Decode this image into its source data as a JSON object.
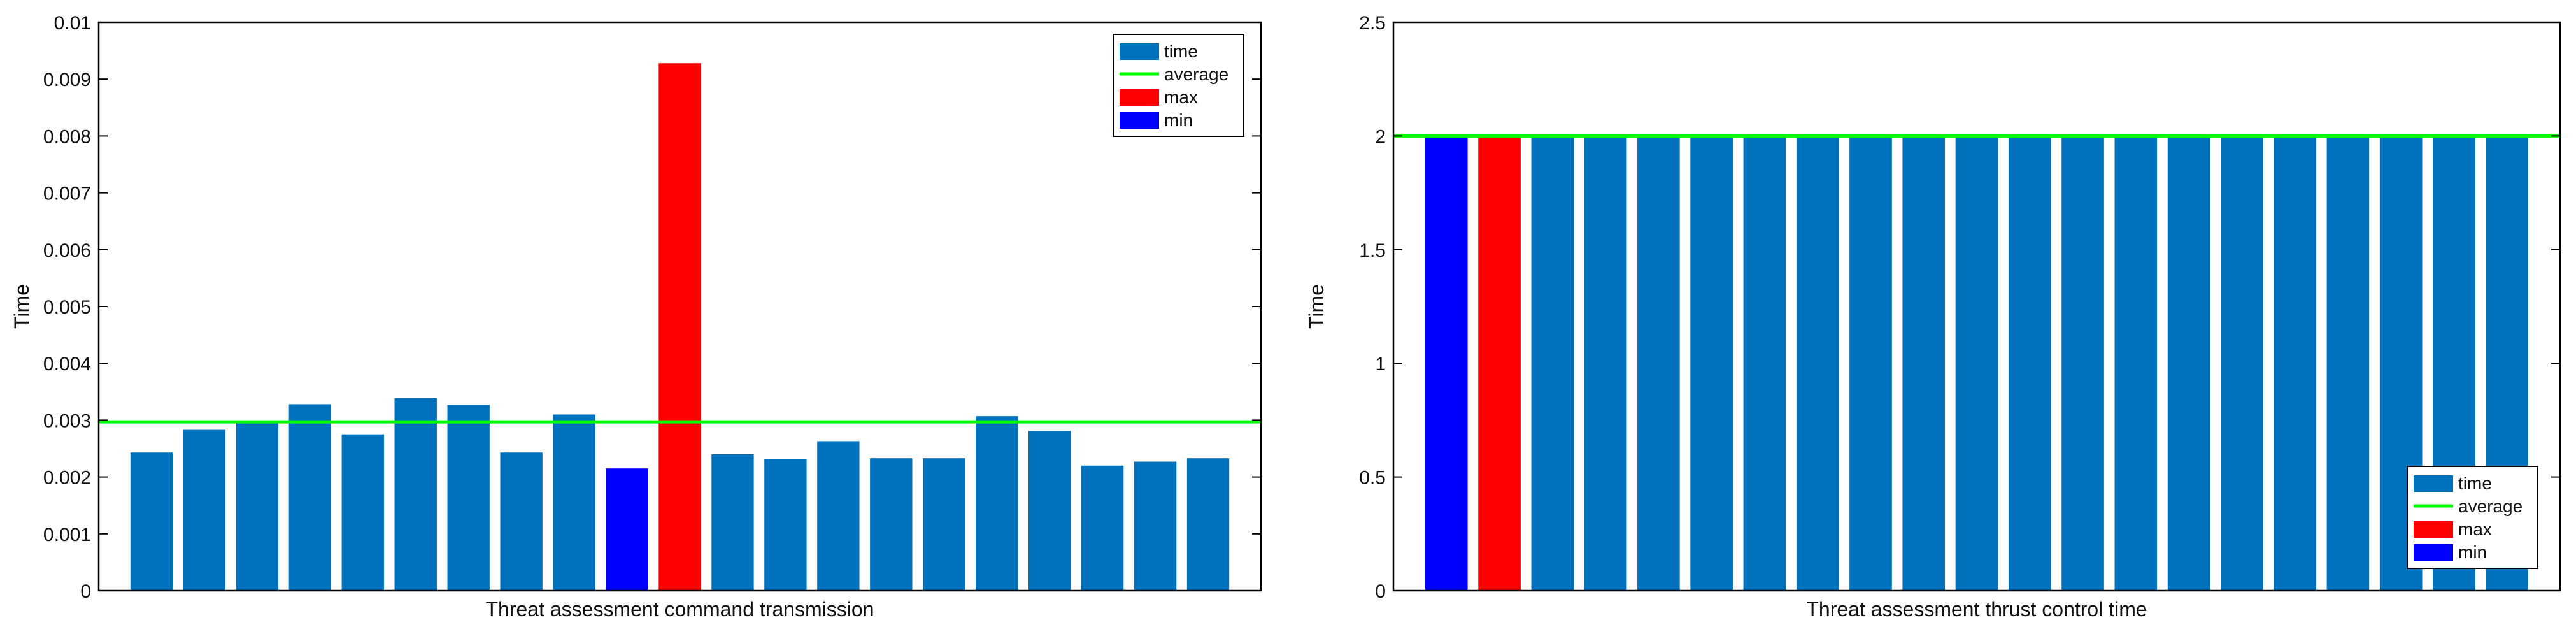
{
  "chart_data": [
    {
      "type": "bar",
      "xlabel": "Threat assessment command transmission",
      "ylabel": "Time",
      "ylim": [
        0,
        0.01
      ],
      "yticks": [
        0,
        0.001,
        0.002,
        0.003,
        0.004,
        0.005,
        0.006,
        0.007,
        0.008,
        0.009,
        0.01
      ],
      "yticklabels": [
        "0",
        "0.001",
        "0.002",
        "0.003",
        "0.004",
        "0.005",
        "0.006",
        "0.007",
        "0.008",
        "0.009",
        "0.01"
      ],
      "xlim": [
        0,
        22
      ],
      "grid": false,
      "legend": "top-right",
      "series": [
        {
          "name": "time",
          "color": "#0072bd",
          "x": [
            1,
            2,
            3,
            4,
            5,
            6,
            7,
            8,
            9,
            12,
            13,
            14,
            15,
            16,
            17,
            18,
            19,
            20,
            21
          ],
          "values": [
            0.00243,
            0.00283,
            0.00295,
            0.00328,
            0.00275,
            0.00339,
            0.00327,
            0.00243,
            0.0031,
            0.0024,
            0.00232,
            0.00263,
            0.00233,
            0.00233,
            0.00307,
            0.00281,
            0.0022,
            0.00227,
            0.00233
          ]
        },
        {
          "name": "average",
          "color": "#00ff00",
          "style": "line",
          "value": 0.00297
        },
        {
          "name": "max",
          "color": "#ff0000",
          "x": [
            11
          ],
          "values": [
            0.00928
          ]
        },
        {
          "name": "min",
          "color": "#0000ff",
          "x": [
            10
          ],
          "values": [
            0.00215
          ]
        }
      ]
    },
    {
      "type": "bar",
      "xlabel": "Threat assessment thrust control time",
      "ylabel": "Time",
      "ylim": [
        0,
        2.5
      ],
      "yticks": [
        0,
        0.5,
        1,
        1.5,
        2,
        2.5
      ],
      "yticklabels": [
        "0",
        "0.5",
        "1",
        "1.5",
        "2",
        "2.5"
      ],
      "xlim": [
        0,
        22
      ],
      "grid": false,
      "legend": "bottom-right",
      "series": [
        {
          "name": "time",
          "color": "#0072bd",
          "x": [
            3,
            4,
            5,
            6,
            7,
            8,
            9,
            10,
            11,
            12,
            13,
            14,
            15,
            16,
            17,
            18,
            19,
            20,
            21
          ],
          "values": [
            2,
            2,
            2,
            2,
            2,
            2,
            2,
            2,
            2,
            2,
            2,
            2,
            2,
            2,
            2,
            2,
            2,
            2,
            2
          ]
        },
        {
          "name": "average",
          "color": "#00ff00",
          "style": "line",
          "value": 2
        },
        {
          "name": "max",
          "color": "#ff0000",
          "x": [
            2
          ],
          "values": [
            2
          ]
        },
        {
          "name": "min",
          "color": "#0000ff",
          "x": [
            1
          ],
          "values": [
            2
          ]
        }
      ]
    }
  ]
}
